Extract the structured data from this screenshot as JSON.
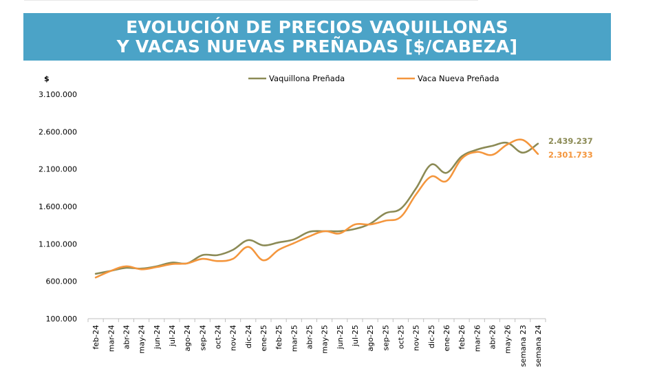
{
  "title": {
    "line1": "EVOLUCIÓN DE PRECIOS VAQUILLONAS",
    "line2": "Y VACAS NUEVAS PREÑADAS [$/CABEZA]"
  },
  "chart_data": {
    "type": "line",
    "ylabel": "$",
    "ylim": [
      100000,
      3100000
    ],
    "yticks": [
      100000,
      600000,
      1100000,
      1600000,
      2100000,
      2600000,
      3100000
    ],
    "ytick_labels": [
      "100.000",
      "600.000",
      "1.100.000",
      "1.600.000",
      "2.100.000",
      "2.600.000",
      "3.100.000"
    ],
    "categories": [
      "feb-24",
      "mar-24",
      "abr-24",
      "may-24",
      "jun-24",
      "jul-24",
      "ago-24",
      "sep-24",
      "oct-24",
      "nov-24",
      "dic-24",
      "ene-25",
      "feb-25",
      "mar-25",
      "abr-25",
      "may-25",
      "jun-25",
      "jul-25",
      "ago-25",
      "sep-25",
      "oct-25",
      "nov-25",
      "dic-25",
      "ene-26",
      "feb-26",
      "mar-26",
      "abr-26",
      "may-26",
      "semana 23",
      "semana 24"
    ],
    "legend_position": "top",
    "grid": false,
    "series": [
      {
        "name": "Vaquillona Preñada",
        "color": "#8b8a55",
        "values": [
          700000,
          740000,
          780000,
          770000,
          800000,
          850000,
          840000,
          950000,
          950000,
          1020000,
          1150000,
          1080000,
          1120000,
          1160000,
          1260000,
          1270000,
          1270000,
          1300000,
          1370000,
          1510000,
          1570000,
          1840000,
          2160000,
          2050000,
          2270000,
          2360000,
          2410000,
          2450000,
          2320000,
          2439237
        ],
        "end_label": "2.439.237"
      },
      {
        "name": "Vaca Nueva Preñada",
        "color": "#f4963d",
        "values": [
          650000,
          740000,
          800000,
          760000,
          790000,
          830000,
          840000,
          900000,
          870000,
          900000,
          1060000,
          880000,
          1020000,
          1110000,
          1200000,
          1270000,
          1240000,
          1360000,
          1360000,
          1410000,
          1460000,
          1760000,
          2000000,
          1940000,
          2240000,
          2330000,
          2290000,
          2430000,
          2490000,
          2301733
        ],
        "end_label": "2.301.733"
      }
    ]
  }
}
